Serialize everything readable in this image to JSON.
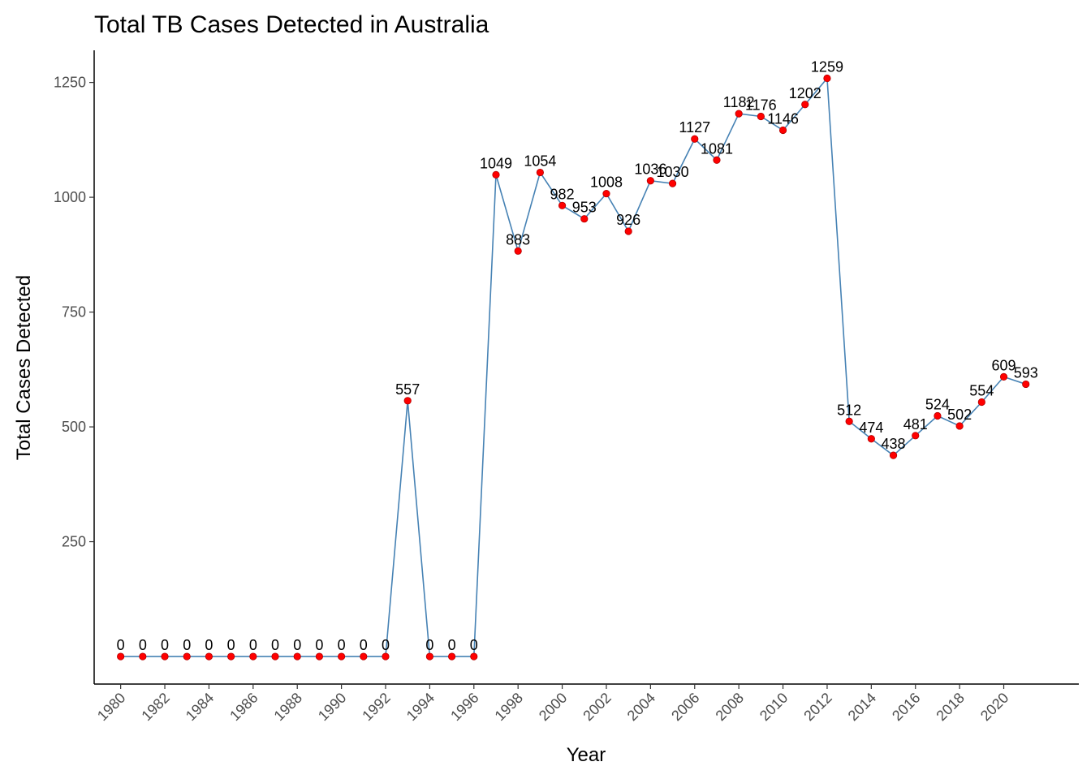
{
  "chart_data": {
    "type": "line",
    "title": "Total TB Cases Detected in Australia",
    "xlabel": "Year",
    "ylabel": "Total Cases Detected",
    "x": [
      1980,
      1981,
      1982,
      1983,
      1984,
      1985,
      1986,
      1987,
      1988,
      1989,
      1990,
      1991,
      1992,
      1993,
      1994,
      1995,
      1996,
      1997,
      1998,
      1999,
      2000,
      2001,
      2002,
      2003,
      2004,
      2005,
      2006,
      2007,
      2008,
      2009,
      2010,
      2011,
      2012,
      2013,
      2014,
      2015,
      2016,
      2017,
      2018,
      2019,
      2020,
      2021
    ],
    "values": [
      0,
      0,
      0,
      0,
      0,
      0,
      0,
      0,
      0,
      0,
      0,
      0,
      0,
      557,
      0,
      0,
      0,
      1049,
      883,
      1054,
      982,
      953,
      1008,
      926,
      1036,
      1030,
      1127,
      1081,
      1182,
      1176,
      1146,
      1202,
      1259,
      512,
      474,
      438,
      481,
      524,
      502,
      554,
      609,
      593
    ],
    "x_ticks": [
      "1980",
      "1982",
      "1984",
      "1986",
      "1988",
      "1990",
      "1992",
      "1994",
      "1996",
      "1998",
      "2000",
      "2002",
      "2004",
      "2006",
      "2008",
      "2010",
      "2012",
      "2014",
      "2016",
      "2018",
      "2020"
    ],
    "y_ticks": [
      "250",
      "500",
      "750",
      "1000",
      "1250"
    ],
    "xlim": [
      1978.8,
      2023.4
    ],
    "ylim": [
      -60,
      1320
    ],
    "line_color": "#4682b4",
    "point_color": "#ff0000",
    "grid": false,
    "legend": "none"
  }
}
